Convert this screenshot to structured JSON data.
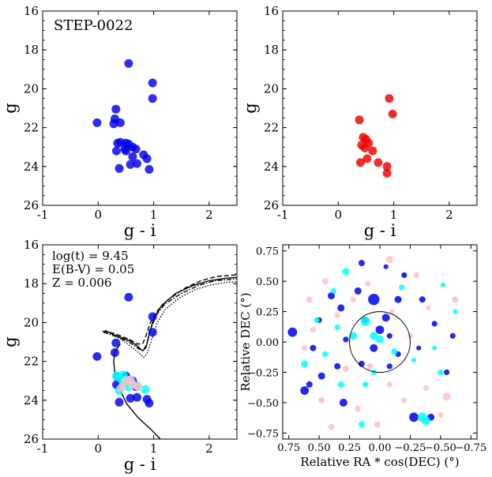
{
  "chart_data": [
    {
      "type": "scatter",
      "title": "STEP-0022",
      "xlabel": "g - i",
      "ylabel": "g",
      "xlim": [
        -1,
        2.5
      ],
      "ylim": [
        26,
        16
      ],
      "xticks": [
        -1,
        0,
        1,
        2
      ],
      "yticks": [
        16,
        18,
        20,
        22,
        24,
        26
      ],
      "grid": false,
      "series": [
        {
          "color": "#0000ee",
          "points": [
            [
              0.55,
              18.7
            ],
            [
              0.98,
              19.7
            ],
            [
              0.98,
              20.5
            ],
            [
              -0.02,
              21.75
            ],
            [
              0.32,
              21.05
            ],
            [
              0.3,
              21.55
            ],
            [
              0.28,
              21.8
            ],
            [
              0.4,
              21.75
            ],
            [
              0.35,
              22.8
            ],
            [
              0.4,
              22.75
            ],
            [
              0.5,
              22.8
            ],
            [
              0.55,
              22.85
            ],
            [
              0.62,
              23.0
            ],
            [
              0.68,
              23.1
            ],
            [
              0.33,
              23.2
            ],
            [
              0.5,
              23.2
            ],
            [
              0.62,
              23.5
            ],
            [
              0.82,
              23.4
            ],
            [
              0.88,
              23.6
            ],
            [
              0.58,
              23.9
            ],
            [
              0.7,
              23.85
            ],
            [
              0.38,
              24.1
            ],
            [
              0.92,
              24.15
            ],
            [
              0.48,
              23.1
            ]
          ]
        }
      ]
    },
    {
      "type": "scatter",
      "xlabel": "g - i",
      "ylabel": "g",
      "xlim": [
        -1,
        2.5
      ],
      "ylim": [
        26,
        16
      ],
      "xticks": [
        -1,
        0,
        1,
        2
      ],
      "yticks": [
        16,
        18,
        20,
        22,
        24,
        26
      ],
      "grid": false,
      "series": [
        {
          "color": "#ee0000",
          "points": [
            [
              0.92,
              20.5
            ],
            [
              0.98,
              21.3
            ],
            [
              0.38,
              21.6
            ],
            [
              0.45,
              22.5
            ],
            [
              0.42,
              22.9
            ],
            [
              0.55,
              22.8
            ],
            [
              0.48,
              23.05
            ],
            [
              0.62,
              23.2
            ],
            [
              0.52,
              23.6
            ],
            [
              0.72,
              23.8
            ],
            [
              0.4,
              23.8
            ],
            [
              0.88,
              24.0
            ],
            [
              0.88,
              24.35
            ],
            [
              0.5,
              22.6
            ]
          ]
        }
      ]
    },
    {
      "type": "scatter",
      "xlabel": "g - i",
      "ylabel": "g",
      "xlim": [
        -1,
        2.5
      ],
      "ylim": [
        26,
        16
      ],
      "xticks": [
        -1,
        0,
        1,
        2
      ],
      "yticks": [
        16,
        18,
        20,
        22,
        24,
        26
      ],
      "grid": false,
      "annotations": [
        "log(t) = 9.45",
        "E(B-V) = 0.05",
        "Z = 0.006"
      ],
      "isochrones": [
        {
          "style": "solid",
          "points": [
            [
              0.12,
              20.4
            ],
            [
              0.3,
              20.65
            ],
            [
              0.58,
              20.95
            ],
            [
              0.72,
              21.25
            ],
            [
              0.8,
              21.45
            ],
            [
              0.86,
              21.3
            ],
            [
              0.92,
              20.6
            ],
            [
              1.0,
              19.8
            ],
            [
              1.15,
              19.1
            ],
            [
              1.4,
              18.5
            ],
            [
              1.7,
              18.1
            ],
            [
              2.0,
              17.85
            ],
            [
              2.3,
              17.72
            ],
            [
              2.5,
              17.68
            ]
          ]
        },
        {
          "style": "dashed",
          "points": [
            [
              0.08,
              20.45
            ],
            [
              0.28,
              20.55
            ],
            [
              0.55,
              20.85
            ],
            [
              0.7,
              21.1
            ],
            [
              0.8,
              21.1
            ],
            [
              0.86,
              20.7
            ],
            [
              0.94,
              20.0
            ],
            [
              1.05,
              19.45
            ],
            [
              1.25,
              18.85
            ],
            [
              1.55,
              18.25
            ],
            [
              1.85,
              17.85
            ],
            [
              2.15,
              17.62
            ],
            [
              2.5,
              17.55
            ]
          ]
        },
        {
          "style": "dotted",
          "points": [
            [
              0.16,
              20.55
            ],
            [
              0.38,
              20.8
            ],
            [
              0.6,
              21.25
            ],
            [
              0.75,
              21.6
            ],
            [
              0.82,
              21.8
            ],
            [
              0.88,
              21.6
            ],
            [
              0.96,
              20.9
            ],
            [
              1.06,
              20.05
            ],
            [
              1.2,
              19.35
            ],
            [
              1.45,
              18.75
            ],
            [
              1.75,
              18.3
            ],
            [
              2.05,
              18.05
            ],
            [
              2.35,
              17.92
            ],
            [
              2.5,
              17.9
            ]
          ]
        },
        {
          "style": "dashdot",
          "points": [
            [
              0.1,
              20.5
            ],
            [
              0.32,
              20.7
            ],
            [
              0.58,
              21.05
            ],
            [
              0.73,
              21.35
            ],
            [
              0.81,
              21.45
            ],
            [
              0.88,
              21.1
            ],
            [
              0.95,
              20.3
            ],
            [
              1.05,
              19.6
            ],
            [
              1.2,
              19.05
            ],
            [
              1.5,
              18.5
            ],
            [
              1.8,
              18.1
            ],
            [
              2.1,
              17.85
            ],
            [
              2.5,
              17.75
            ]
          ]
        },
        {
          "style": "solid",
          "points": [
            [
              0.4,
              21.1
            ],
            [
              0.3,
              21.5
            ],
            [
              0.28,
              22.0
            ],
            [
              0.3,
              22.6
            ],
            [
              0.38,
              23.4
            ],
            [
              0.52,
              24.2
            ],
            [
              0.72,
              24.9
            ],
            [
              0.95,
              25.5
            ],
            [
              1.12,
              26.0
            ]
          ]
        }
      ],
      "series": [
        {
          "name": "",
          "color": "#0000ee",
          "points": [
            [
              0.55,
              18.7
            ],
            [
              0.98,
              19.7
            ],
            [
              0.98,
              20.5
            ],
            [
              -0.02,
              21.75
            ],
            [
              0.32,
              21.05
            ],
            [
              0.3,
              21.55
            ],
            [
              0.35,
              22.8
            ],
            [
              0.5,
              22.75
            ],
            [
              0.62,
              23.0
            ],
            [
              0.68,
              23.3
            ],
            [
              0.33,
              23.2
            ],
            [
              0.58,
              23.9
            ],
            [
              0.7,
              23.85
            ],
            [
              0.38,
              24.1
            ],
            [
              0.92,
              24.15
            ],
            [
              0.88,
              23.95
            ]
          ]
        },
        {
          "color": "#00ffff",
          "points": [
            [
              0.33,
              22.75
            ],
            [
              0.38,
              22.85
            ],
            [
              0.45,
              22.7
            ],
            [
              0.52,
              22.95
            ],
            [
              0.6,
              23.1
            ],
            [
              0.7,
              23.25
            ],
            [
              0.85,
              23.45
            ],
            [
              0.45,
              23.1
            ],
            [
              0.55,
              23.3
            ],
            [
              0.38,
              23.5
            ]
          ]
        },
        {
          "color": "#ffc0cb",
          "points": [
            [
              0.5,
              23.0
            ],
            [
              0.58,
              22.95
            ],
            [
              0.62,
              23.2
            ],
            [
              0.72,
              23.3
            ],
            [
              0.42,
              23.35
            ]
          ]
        }
      ]
    },
    {
      "type": "scatter",
      "xlabel": "Relative RA * cos(DEC) (°)",
      "ylabel": "Relative DEC (°)",
      "xlim": [
        0.8,
        -0.8
      ],
      "ylim": [
        -0.8,
        0.8
      ],
      "xticks": [
        0.75,
        0.5,
        0.25,
        0.0,
        -0.25,
        -0.5,
        -0.75
      ],
      "xtick_labels": [
        "0.75",
        "0.50",
        "0.25",
        "0.00",
        "−0.25",
        "−0.50",
        "−0.75"
      ],
      "yticks": [
        -0.75,
        -0.5,
        -0.25,
        0.0,
        0.25,
        0.5,
        0.75
      ],
      "yticklabels": [
        "−0.75",
        "−0.50",
        "−0.25",
        "0.00",
        "0.25",
        "0.50",
        "0.75"
      ],
      "grid": false,
      "circle": {
        "center": [
          0.0,
          0.0
        ],
        "radius": 0.25
      },
      "series": [
        {
          "color": "#0000ee",
          "points": [
            [
              -0.15,
              0.35
            ],
            [
              0.05,
              0.35
            ],
            [
              0.12,
              0.18
            ],
            [
              -0.05,
              0.2
            ],
            [
              0.72,
              0.08
            ],
            [
              0.0,
              0.1
            ],
            [
              -0.08,
              0.05
            ],
            [
              0.05,
              -0.05
            ],
            [
              -0.35,
              0.35
            ],
            [
              0.4,
              0.38
            ],
            [
              0.32,
              0.28
            ],
            [
              0.5,
              0.18
            ],
            [
              0.55,
              -0.05
            ],
            [
              -0.6,
              0.05
            ],
            [
              0.3,
              -0.5
            ],
            [
              0.48,
              -0.28
            ],
            [
              0.62,
              -0.4
            ],
            [
              -0.28,
              -0.62
            ],
            [
              -0.42,
              -0.62
            ],
            [
              0.58,
              -0.35
            ],
            [
              -0.55,
              -0.25
            ],
            [
              -0.2,
              0.55
            ],
            [
              0.15,
              0.65
            ],
            [
              -0.05,
              0.62
            ],
            [
              0.28,
              0.02
            ],
            [
              0.15,
              -0.18
            ],
            [
              -0.15,
              -0.1
            ],
            [
              -0.08,
              -0.2
            ],
            [
              0.35,
              -0.2
            ],
            [
              -0.32,
              -0.05
            ],
            [
              -0.45,
              0.15
            ],
            [
              0.18,
              0.42
            ]
          ],
          "sizes": [
            1,
            1.6,
            0.9,
            1.1,
            1.3,
            1.2,
            0.8,
            1.1,
            0.9,
            1.0,
            1.0,
            0.8,
            0.9,
            0.8,
            1.1,
            1.0,
            1.2,
            1.3,
            1.0,
            0.9,
            0.8,
            0.8,
            0.9,
            0.7,
            0.8,
            0.9,
            0.8,
            0.8,
            0.9,
            0.7,
            0.8,
            1.0
          ]
        },
        {
          "color": "#00ffff",
          "points": [
            [
              0.28,
              0.58
            ],
            [
              0.12,
              0.17
            ],
            [
              0.05,
              0.05
            ],
            [
              0.45,
              -0.1
            ],
            [
              0.32,
              -0.35
            ],
            [
              0.62,
              -0.18
            ],
            [
              -0.12,
              -0.08
            ],
            [
              -0.35,
              -0.62
            ],
            [
              -0.38,
              -0.65
            ],
            [
              0.15,
              -0.68
            ],
            [
              -0.52,
              0.47
            ],
            [
              -0.18,
              0.45
            ],
            [
              0.38,
              0.42
            ],
            [
              -0.62,
              0.25
            ],
            [
              0.22,
              0.05
            ],
            [
              -0.5,
              -0.25
            ],
            [
              0.52,
              0.18
            ],
            [
              0.05,
              -0.25
            ],
            [
              0.0,
              0.02
            ],
            [
              -0.28,
              -0.15
            ],
            [
              0.12,
              -0.35
            ],
            [
              -0.45,
              -0.05
            ],
            [
              0.35,
              0.12
            ]
          ],
          "sizes": [
            1,
            1.3,
            1.1,
            0.8,
            0.9,
            1.0,
            0.9,
            1.3,
            1.2,
            0.9,
            0.7,
            0.8,
            0.8,
            0.7,
            1.1,
            0.8,
            0.8,
            0.8,
            1.1,
            0.7,
            0.8,
            0.7,
            0.8
          ]
        },
        {
          "color": "#ffc0cb",
          "points": [
            [
              -0.08,
              0.68
            ],
            [
              -0.3,
              0.55
            ],
            [
              0.35,
              0.22
            ],
            [
              0.58,
              0.35
            ],
            [
              0.45,
              0.5
            ],
            [
              0.08,
              -0.2
            ],
            [
              -0.25,
              0.05
            ],
            [
              0.48,
              -0.48
            ],
            [
              -0.55,
              -0.45
            ],
            [
              -0.38,
              -0.38
            ],
            [
              0.18,
              -0.55
            ],
            [
              -0.62,
              0.35
            ],
            [
              0.62,
              -0.05
            ],
            [
              0.28,
              -0.22
            ],
            [
              -0.08,
              -0.35
            ],
            [
              0.4,
              -0.7
            ],
            [
              -0.5,
              -0.6
            ],
            [
              0.02,
              -0.68
            ],
            [
              -0.2,
              -0.48
            ],
            [
              0.22,
              0.35
            ],
            [
              -0.1,
              0.25
            ],
            [
              0.55,
              0.1
            ],
            [
              -0.4,
              0.28
            ],
            [
              0.1,
              0.48
            ]
          ],
          "sizes": [
            1,
            0.8,
            0.8,
            0.9,
            0.9,
            0.9,
            0.8,
            0.9,
            1.1,
            0.8,
            0.9,
            0.9,
            0.8,
            0.9,
            0.8,
            0.9,
            0.8,
            0.9,
            0.8,
            0.8,
            0.7,
            0.8,
            0.7,
            0.8
          ]
        }
      ]
    }
  ]
}
